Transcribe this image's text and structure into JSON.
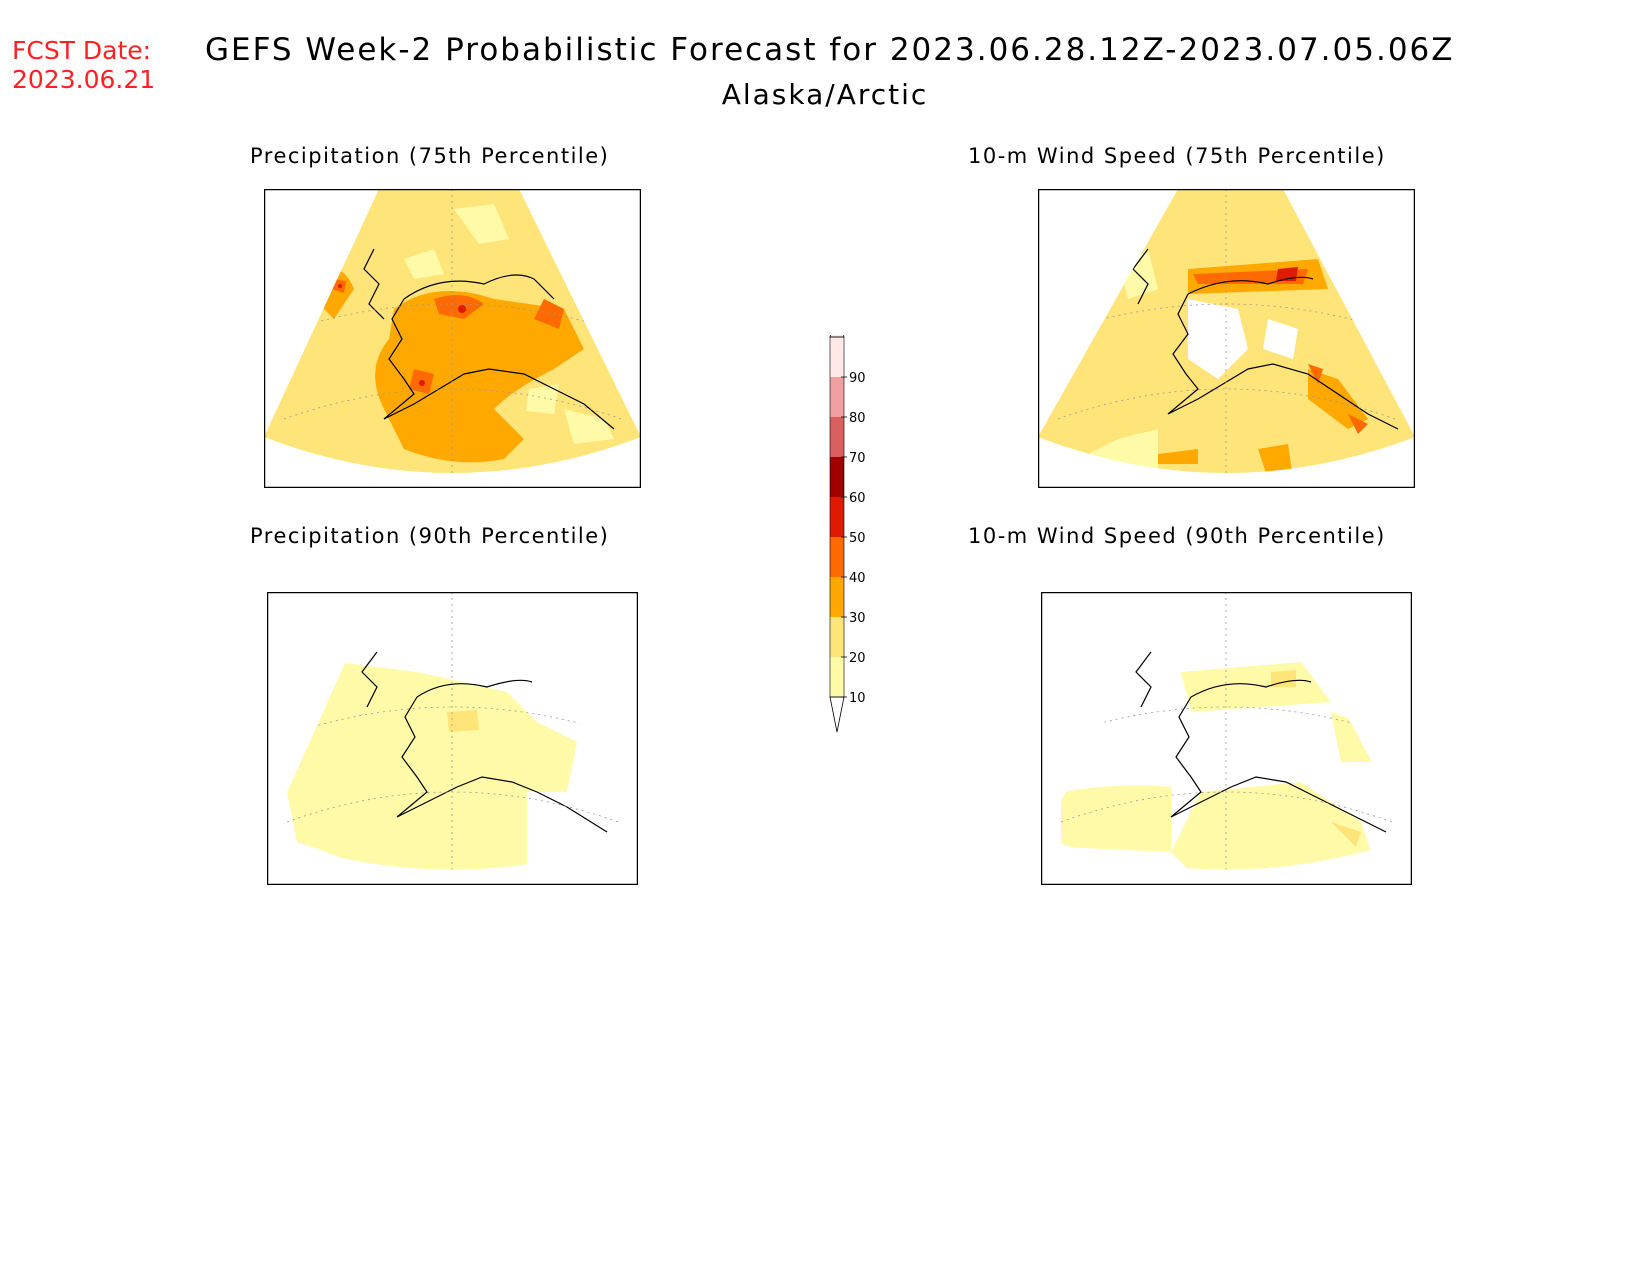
{
  "header": {
    "fcst_label": "FCST Date:",
    "fcst_date": "2023.06.21",
    "title": "GEFS Week-2 Probabilistic Forecast for 2023.06.28.12Z-2023.07.05.06Z",
    "region": "Alaska/Arctic"
  },
  "panels": [
    {
      "title": "Precipitation (75th Percentile)"
    },
    {
      "title": "10-m Wind Speed (75th Percentile)"
    },
    {
      "title": "Precipitation (90th Percentile)"
    },
    {
      "title": "10-m Wind Speed (90th Percentile)"
    }
  ],
  "colorbar": {
    "levels": [
      "10",
      "20",
      "30",
      "40",
      "50",
      "60",
      "70",
      "80",
      "90"
    ],
    "colors": [
      "#fffaa8",
      "#ffe47a",
      "#ffa800",
      "#ff6a00",
      "#e01a00",
      "#a00000",
      "#d86060",
      "#f0a0a0",
      "#ffe8e8"
    ]
  }
}
